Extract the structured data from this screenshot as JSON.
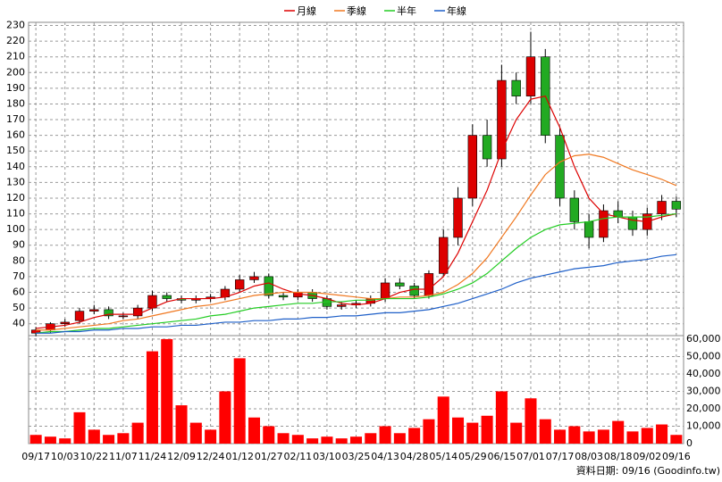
{
  "chart_data": [
    {
      "type": "candlestick",
      "categories": [
        "09/17",
        null,
        "10/03",
        null,
        "10/22",
        null,
        "11/07",
        null,
        "11/24",
        null,
        "12/09",
        null,
        "12/24",
        null,
        "01/12",
        null,
        "01/27",
        null,
        "02/11",
        null,
        "03/10",
        null,
        "03/25",
        null,
        "04/13",
        null,
        "04/28",
        null,
        "05/14",
        null,
        "05/29",
        null,
        "06/15",
        null,
        "07/01",
        null,
        "07/17",
        null,
        "08/03",
        null,
        "08/18",
        null,
        "09/02",
        null,
        "09/16"
      ],
      "open": [
        34,
        36,
        40,
        42,
        48,
        49,
        45,
        45,
        50,
        58,
        56,
        55,
        56,
        57,
        62,
        68,
        70,
        58,
        57,
        60,
        56,
        51,
        52,
        53,
        56,
        66,
        64,
        58,
        72,
        95,
        120,
        160,
        145,
        195,
        185,
        210,
        160,
        120,
        105,
        95,
        112,
        108,
        100,
        110,
        118
      ],
      "high": [
        38,
        41,
        43,
        50,
        52,
        51,
        47,
        52,
        61,
        60,
        58,
        58,
        59,
        64,
        71,
        73,
        72,
        60,
        62,
        62,
        58,
        54,
        55,
        58,
        69,
        69,
        66,
        74,
        100,
        127,
        167,
        170,
        205,
        200,
        226,
        215,
        165,
        125,
        110,
        116,
        118,
        112,
        114,
        122,
        121
      ],
      "low": [
        32,
        34,
        38,
        40,
        46,
        43,
        43,
        43,
        48,
        54,
        53,
        53,
        54,
        55,
        60,
        66,
        56,
        55,
        55,
        54,
        49,
        49,
        50,
        51,
        54,
        62,
        56,
        56,
        70,
        90,
        115,
        140,
        140,
        180,
        180,
        155,
        115,
        100,
        88,
        92,
        104,
        96,
        96,
        106,
        108
      ],
      "close": [
        36,
        40,
        41,
        48,
        49,
        45,
        45,
        50,
        58,
        56,
        55,
        56,
        57,
        62,
        68,
        70,
        58,
        57,
        60,
        56,
        51,
        52,
        53,
        56,
        66,
        64,
        58,
        72,
        95,
        120,
        160,
        145,
        195,
        185,
        210,
        160,
        120,
        105,
        95,
        112,
        108,
        100,
        110,
        118,
        113
      ],
      "up_color": "#dd0000",
      "down_color": "#22aa22",
      "series": [
        {
          "name": "月線",
          "color": "#dd0000",
          "values": [
            37,
            38,
            39,
            41,
            44,
            46,
            46,
            46,
            50,
            54,
            56,
            56,
            56,
            57,
            60,
            64,
            66,
            62,
            59,
            58,
            56,
            53,
            52,
            53,
            56,
            60,
            62,
            62,
            70,
            85,
            105,
            125,
            150,
            170,
            183,
            185,
            165,
            140,
            120,
            110,
            108,
            106,
            105,
            108,
            110
          ]
        },
        {
          "name": "季線",
          "color": "#f07820",
          "values": [
            36,
            36,
            37,
            38,
            39,
            40,
            42,
            43,
            45,
            47,
            49,
            51,
            52,
            54,
            56,
            58,
            59,
            60,
            60,
            60,
            59,
            58,
            57,
            56,
            56,
            57,
            57,
            58,
            60,
            65,
            72,
            82,
            95,
            108,
            122,
            135,
            143,
            147,
            148,
            146,
            142,
            138,
            135,
            132,
            128
          ]
        },
        {
          "name": "半年",
          "color": "#22cc22",
          "values": [
            34,
            35,
            35,
            36,
            37,
            37,
            38,
            39,
            40,
            41,
            42,
            43,
            45,
            46,
            48,
            50,
            51,
            52,
            53,
            53,
            54,
            54,
            55,
            55,
            56,
            56,
            56,
            57,
            59,
            62,
            66,
            72,
            80,
            88,
            95,
            100,
            103,
            104,
            105,
            107,
            108,
            108,
            108,
            109,
            110
          ]
        },
        {
          "name": "年線",
          "color": "#1e5fc8",
          "values": [
            34,
            34,
            35,
            35,
            36,
            36,
            37,
            37,
            38,
            38,
            39,
            39,
            40,
            41,
            41,
            42,
            42,
            43,
            43,
            44,
            44,
            45,
            45,
            46,
            47,
            47,
            48,
            49,
            51,
            53,
            56,
            59,
            62,
            66,
            69,
            71,
            73,
            75,
            76,
            77,
            79,
            80,
            81,
            83,
            84
          ]
        }
      ],
      "ylim": [
        33,
        232
      ],
      "yticks": [
        40,
        50,
        60,
        70,
        80,
        90,
        100,
        110,
        120,
        130,
        140,
        150,
        160,
        170,
        180,
        190,
        200,
        210,
        220,
        230
      ],
      "grid": true,
      "legend": "top",
      "footnote": "資料日期: 09/16 (Goodinfo.tw)"
    },
    {
      "type": "bar",
      "values": [
        5000,
        4000,
        3000,
        18000,
        8000,
        5000,
        6000,
        12000,
        53000,
        60000,
        22000,
        12000,
        8000,
        30000,
        49000,
        15000,
        10000,
        6000,
        5000,
        3000,
        4000,
        3000,
        4000,
        6000,
        10000,
        6000,
        9000,
        14000,
        27000,
        15000,
        12000,
        16000,
        30000,
        12000,
        26000,
        14000,
        8000,
        10000,
        7000,
        8000,
        13000,
        7000,
        9000,
        11000,
        5000
      ],
      "color": "#ff0000",
      "ylim": [
        0,
        61500
      ],
      "yticks": [
        0,
        {
          "value": 10000,
          "label": "10,000"
        },
        {
          "value": 20000,
          "label": "20,000"
        },
        {
          "value": 30000,
          "label": "30,000"
        },
        {
          "value": 40000,
          "label": "40,000"
        },
        {
          "value": 50000,
          "label": "50,000"
        },
        {
          "value": 60000,
          "label": "60,000"
        }
      ],
      "grid": true
    }
  ]
}
